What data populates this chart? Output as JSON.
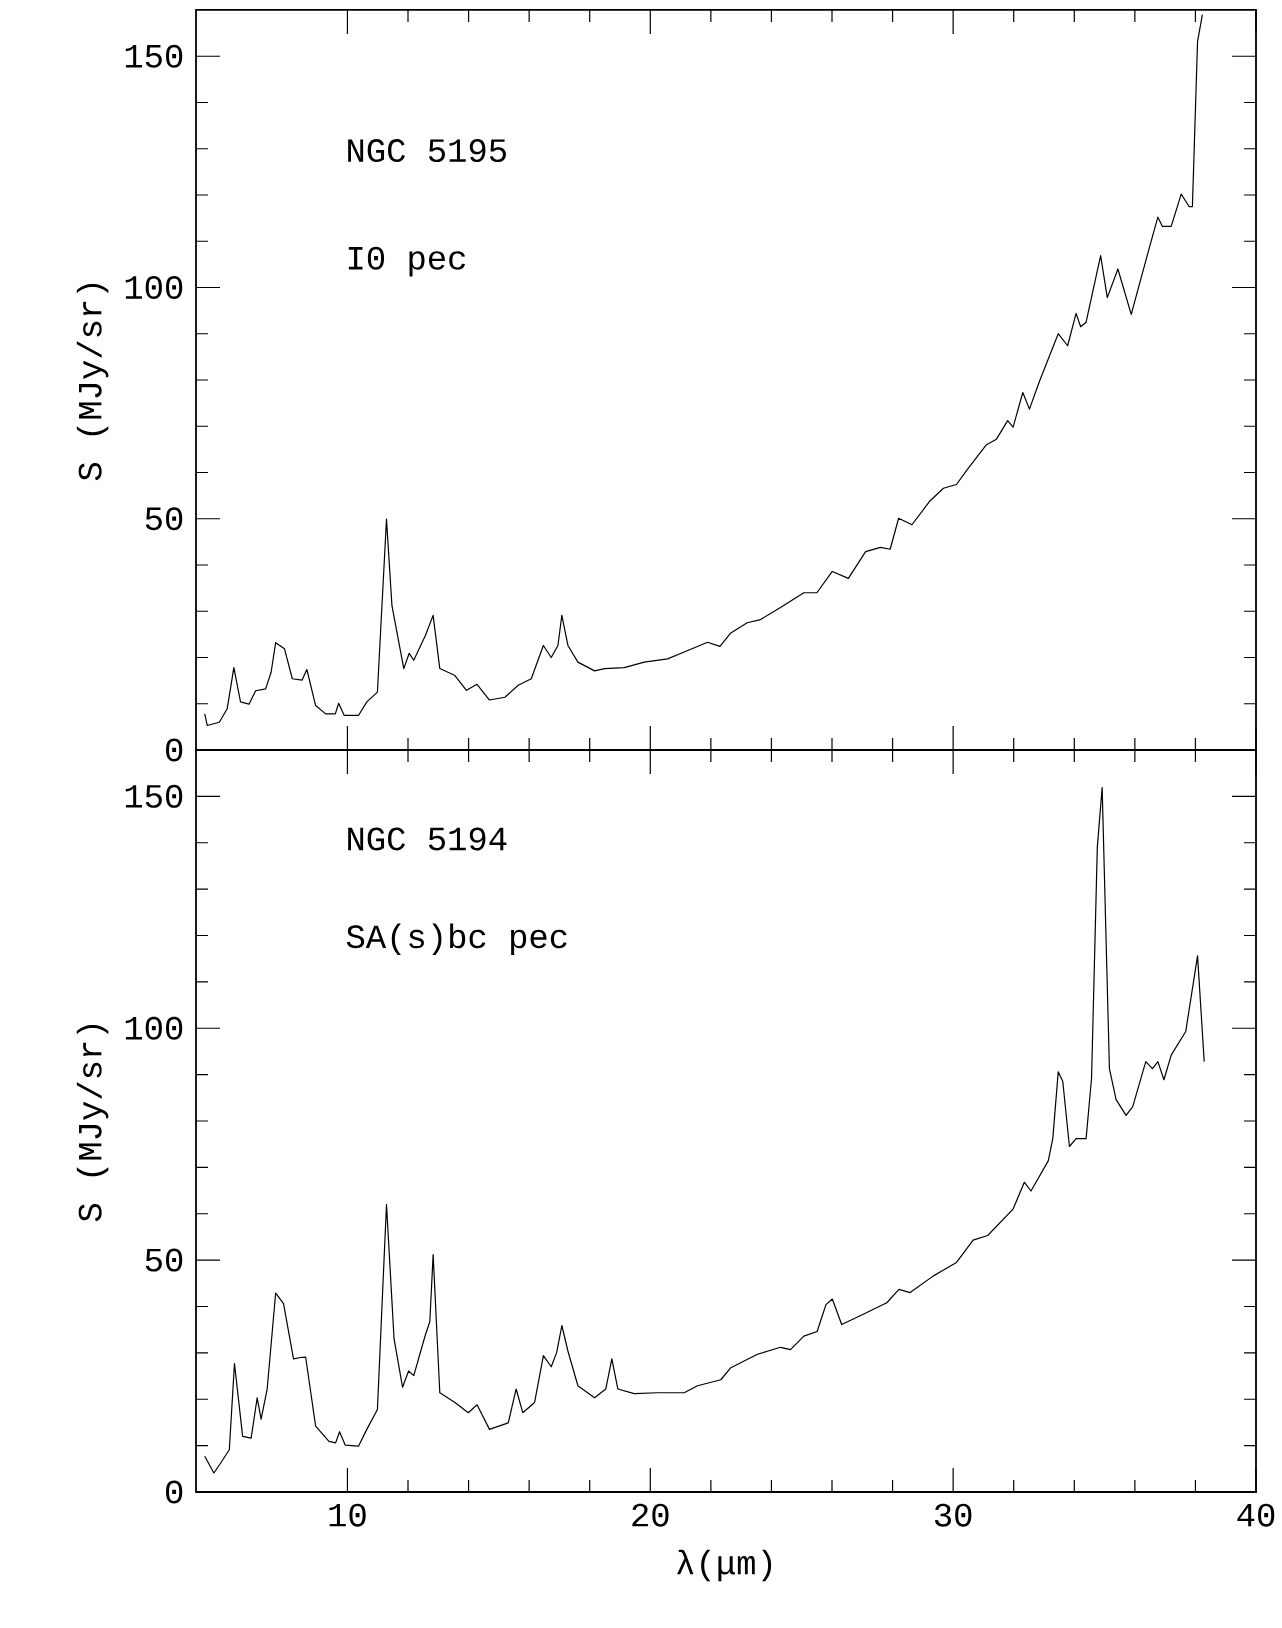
{
  "chart_data": [
    {
      "type": "line",
      "ylabel": "S (MJy/sr)",
      "annotations": [
        "NGC 5195",
        "I0 pec"
      ],
      "xlim": [
        5,
        40
      ],
      "ylim": [
        0,
        160
      ],
      "xticks": [
        10,
        20,
        30,
        40
      ],
      "yticks": [
        0,
        50,
        100,
        150
      ],
      "tick_labels": "y",
      "color": "#000000",
      "x": [
        5.29,
        5.37,
        5.77,
        6.03,
        6.25,
        6.47,
        6.75,
        6.97,
        7.3,
        7.48,
        7.63,
        7.92,
        8.18,
        8.5,
        8.66,
        8.95,
        9.28,
        9.6,
        9.71,
        9.89,
        10.37,
        10.64,
        10.99,
        11.29,
        11.47,
        11.86,
        12.04,
        12.19,
        12.57,
        12.83,
        13.05,
        13.55,
        13.93,
        14.28,
        14.69,
        15.2,
        15.64,
        16.07,
        16.47,
        16.73,
        16.95,
        17.08,
        17.28,
        17.61,
        18.16,
        18.49,
        19.14,
        19.8,
        20.57,
        21.12,
        21.89,
        22.3,
        22.66,
        23.2,
        23.64,
        24.3,
        25.07,
        25.5,
        26.01,
        26.54,
        27.11,
        27.6,
        27.92,
        28.2,
        28.64,
        29.24,
        29.68,
        30.11,
        30.44,
        31.1,
        31.43,
        31.8,
        31.98,
        32.3,
        32.52,
        32.86,
        33.47,
        33.78,
        34.06,
        34.21,
        34.39,
        34.87,
        35.09,
        35.44,
        35.88,
        36.47,
        36.76,
        36.91,
        37.2,
        37.53,
        37.79,
        37.9,
        38.07,
        38.23
      ],
      "values": [
        7.8,
        5.3,
        6.0,
        8.9,
        17.8,
        10.4,
        9.9,
        12.8,
        13.2,
        16.8,
        23.2,
        21.9,
        15.4,
        15.1,
        17.4,
        9.6,
        7.8,
        7.8,
        10.1,
        7.5,
        7.5,
        10.4,
        12.5,
        49.9,
        31.2,
        17.6,
        20.9,
        19.4,
        24.7,
        29.1,
        17.6,
        16.1,
        12.9,
        14.2,
        10.8,
        11.4,
        14.0,
        15.4,
        22.6,
        20.0,
        22.6,
        29.1,
        22.6,
        19.0,
        17.1,
        17.6,
        17.8,
        19.0,
        19.7,
        21.2,
        23.3,
        22.4,
        25.3,
        27.5,
        28.2,
        30.8,
        34.0,
        34.0,
        38.6,
        37.1,
        42.9,
        43.8,
        43.4,
        50.1,
        48.7,
        53.9,
        56.6,
        57.4,
        60.4,
        66.0,
        67.2,
        71.2,
        69.8,
        77.3,
        73.7,
        79.9,
        90.0,
        87.4,
        94.4,
        91.5,
        92.5,
        106.9,
        97.8,
        104.0,
        94.2,
        108.4,
        115.2,
        113.2,
        113.2,
        120.2,
        117.5,
        117.5,
        153.2,
        159
      ]
    },
    {
      "type": "line",
      "xlabel": "λ(μm)",
      "ylabel": "S (MJy/sr)",
      "annotations": [
        "NGC 5194",
        "SA(s)bc pec"
      ],
      "xlim": [
        5,
        40
      ],
      "ylim": [
        0,
        160
      ],
      "xticks": [
        10,
        20,
        30,
        40
      ],
      "yticks": [
        0,
        50,
        100,
        150
      ],
      "color": "#000000",
      "x": [
        5.29,
        5.59,
        5.81,
        6.1,
        6.27,
        6.54,
        6.82,
        7.02,
        7.15,
        7.35,
        7.63,
        7.89,
        8.22,
        8.46,
        8.62,
        8.95,
        9.39,
        9.61,
        9.74,
        9.93,
        10.37,
        10.64,
        10.99,
        11.29,
        11.54,
        11.82,
        12.02,
        12.19,
        12.57,
        12.72,
        12.83,
        13.05,
        13.55,
        13.99,
        14.28,
        14.69,
        15.31,
        15.57,
        15.79,
        16.18,
        16.47,
        16.73,
        16.91,
        17.08,
        17.28,
        17.61,
        18.16,
        18.53,
        18.73,
        18.93,
        19.47,
        20.24,
        21.12,
        21.56,
        22.33,
        22.66,
        23.54,
        24.3,
        24.63,
        25.07,
        25.51,
        25.8,
        26.01,
        26.32,
        26.93,
        27.81,
        28.21,
        28.58,
        29.35,
        30.11,
        30.66,
        31.14,
        31.98,
        32.35,
        32.57,
        33.14,
        33.29,
        33.47,
        33.62,
        33.84,
        34.06,
        34.39,
        34.57,
        34.76,
        34.92,
        35.16,
        35.38,
        35.71,
        35.93,
        36.36,
        36.58,
        36.76,
        36.96,
        37.2,
        37.68,
        38.07,
        38.29
      ],
      "values": [
        7.7,
        4.1,
        6.2,
        9.1,
        27.7,
        12.0,
        11.6,
        20.3,
        15.7,
        22.2,
        42.9,
        40.6,
        28.7,
        29.0,
        29.1,
        14.2,
        10.9,
        10.6,
        13.0,
        10.1,
        9.9,
        13.5,
        17.8,
        62.0,
        33.0,
        22.6,
        26.1,
        25.1,
        33.8,
        36.7,
        51.2,
        21.4,
        19.3,
        17.1,
        18.8,
        13.5,
        14.9,
        22.2,
        17.1,
        19.3,
        29.4,
        27.0,
        30.1,
        35.9,
        30.4,
        22.9,
        20.3,
        22.2,
        28.7,
        22.2,
        21.2,
        21.4,
        21.4,
        22.9,
        24.2,
        26.8,
        29.7,
        31.2,
        30.7,
        33.6,
        34.6,
        40.4,
        41.6,
        36.1,
        38.0,
        40.8,
        43.7,
        43.0,
        46.6,
        49.5,
        54.3,
        55.3,
        61.0,
        66.8,
        64.9,
        71.4,
        76.2,
        90.6,
        88.5,
        74.5,
        76.2,
        76.2,
        89.2,
        139.0,
        151.9,
        91.3,
        84.6,
        81.2,
        83.1,
        92.8,
        91.3,
        92.8,
        88.9,
        94.2,
        99.3,
        115.6,
        92.8
      ]
    }
  ]
}
